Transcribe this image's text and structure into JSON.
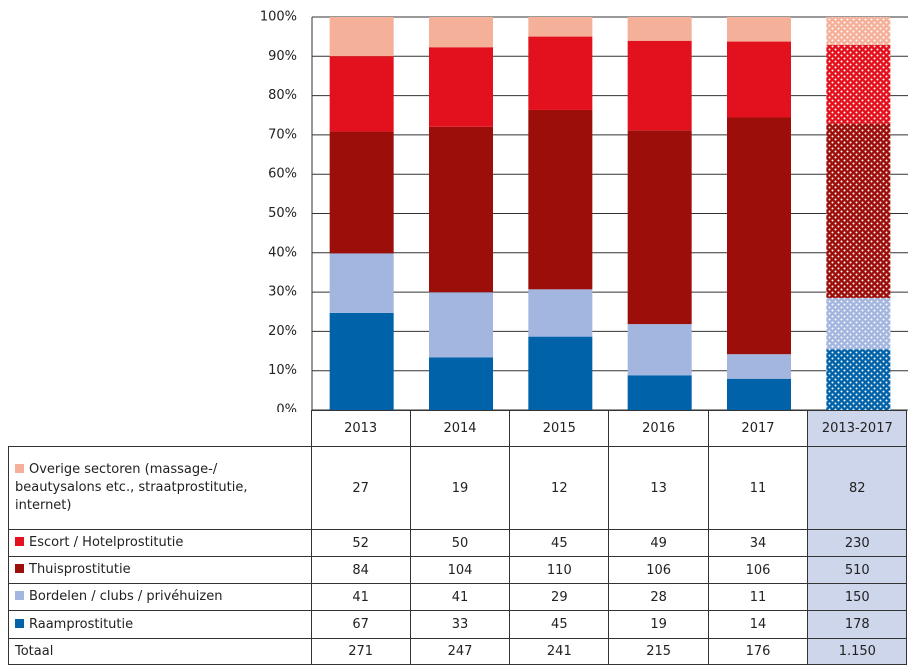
{
  "chart_data": {
    "type": "bar",
    "stacking": "percent",
    "categories": [
      "2013",
      "2014",
      "2015",
      "2016",
      "2017",
      "2013-2017"
    ],
    "series": [
      {
        "name": "Overige sectoren (massage-/ beautysalons etc., straatprostitutie, internet)",
        "color": "#f5b09a",
        "values": [
          27,
          19,
          12,
          13,
          11,
          82
        ]
      },
      {
        "name": "Escort / Hotelprostitutie",
        "color": "#e3101d",
        "values": [
          52,
          50,
          45,
          49,
          34,
          230
        ]
      },
      {
        "name": "Thuisprostitutie",
        "color": "#9c0e0a",
        "values": [
          84,
          104,
          110,
          106,
          106,
          510
        ]
      },
      {
        "name": "Bordelen / clubs / privéhuizen",
        "color": "#a2b6df",
        "values": [
          41,
          41,
          29,
          28,
          11,
          150
        ]
      },
      {
        "name": "Raamprostitutie",
        "color": "#0062a8",
        "values": [
          67,
          33,
          45,
          19,
          14,
          178
        ]
      }
    ],
    "totals_name": "Totaal",
    "totals": [
      271,
      247,
      241,
      215,
      176,
      {
        "value": 1150,
        "label": "1.150"
      }
    ],
    "ylim": [
      0,
      100
    ],
    "yticks": [
      {
        "value": 0,
        "label": "0%"
      },
      {
        "value": 10,
        "label": "10%"
      },
      {
        "value": 20,
        "label": "20%"
      },
      {
        "value": 30,
        "label": "30%"
      },
      {
        "value": 40,
        "label": "40%"
      },
      {
        "value": 50,
        "label": "50%"
      },
      {
        "value": 60,
        "label": "60%"
      },
      {
        "value": 70,
        "label": "70%"
      },
      {
        "value": 80,
        "label": "80%"
      },
      {
        "value": 90,
        "label": "90%"
      },
      {
        "value": 100,
        "label": "100%"
      }
    ],
    "grid": true
  }
}
